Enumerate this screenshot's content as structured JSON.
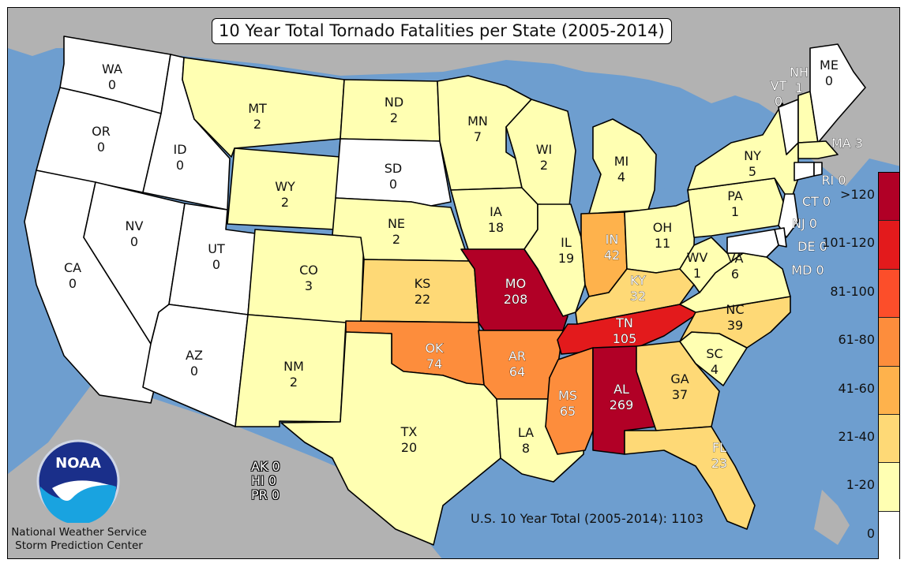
{
  "title": "10 Year Total Tornado Fatalities per State (2005-2014)",
  "us_total": "U.S. 10 Year Total (2005-2014): 1103",
  "credit": {
    "line1": "National Weather Service",
    "line2": "Storm Prediction Center"
  },
  "logo_text": "NOAA",
  "territories": {
    "ak": "AK 0",
    "hi": "HI 0",
    "pr": "PR 0"
  },
  "legend": [
    {
      "label": ">120",
      "color": "#B10026"
    },
    {
      "label": "101-120",
      "color": "#E31A1C"
    },
    {
      "label": "81-100",
      "color": "#FC4E2A"
    },
    {
      "label": "61-80",
      "color": "#FD8D3C"
    },
    {
      "label": "41-60",
      "color": "#FEB24C"
    },
    {
      "label": "21-40",
      "color": "#FED976"
    },
    {
      "label": "1-20",
      "color": "#FFFFB2"
    },
    {
      "label": "0",
      "color": "#FFFFFF"
    }
  ],
  "colors": {
    "ocean": "#6E9ECF",
    "land_outside": "#B2B2B2"
  },
  "states": {
    "WA": {
      "abbr": "WA",
      "value": "0"
    },
    "OR": {
      "abbr": "OR",
      "value": "0"
    },
    "CA": {
      "abbr": "CA",
      "value": "0"
    },
    "ID": {
      "abbr": "ID",
      "value": "0"
    },
    "NV": {
      "abbr": "NV",
      "value": "0"
    },
    "UT": {
      "abbr": "UT",
      "value": "0"
    },
    "AZ": {
      "abbr": "AZ",
      "value": "0"
    },
    "MT": {
      "abbr": "MT",
      "value": "2"
    },
    "WY": {
      "abbr": "WY",
      "value": "2"
    },
    "CO": {
      "abbr": "CO",
      "value": "3"
    },
    "NM": {
      "abbr": "NM",
      "value": "2"
    },
    "ND": {
      "abbr": "ND",
      "value": "2"
    },
    "SD": {
      "abbr": "SD",
      "value": "0"
    },
    "NE": {
      "abbr": "NE",
      "value": "2"
    },
    "KS": {
      "abbr": "KS",
      "value": "22"
    },
    "OK": {
      "abbr": "OK",
      "value": "74"
    },
    "TX": {
      "abbr": "TX",
      "value": "20"
    },
    "MN": {
      "abbr": "MN",
      "value": "7"
    },
    "IA": {
      "abbr": "IA",
      "value": "18"
    },
    "MO": {
      "abbr": "MO",
      "value": "208"
    },
    "AR": {
      "abbr": "AR",
      "value": "64"
    },
    "LA": {
      "abbr": "LA",
      "value": "8"
    },
    "WI": {
      "abbr": "WI",
      "value": "2"
    },
    "IL": {
      "abbr": "IL",
      "value": "19"
    },
    "MI": {
      "abbr": "MI",
      "value": "4"
    },
    "IN": {
      "abbr": "IN",
      "value": "42"
    },
    "OH": {
      "abbr": "OH",
      "value": "11"
    },
    "KY": {
      "abbr": "KY",
      "value": "32"
    },
    "TN": {
      "abbr": "TN",
      "value": "105"
    },
    "MS": {
      "abbr": "MS",
      "value": "65"
    },
    "AL": {
      "abbr": "AL",
      "value": "269"
    },
    "GA": {
      "abbr": "GA",
      "value": "37"
    },
    "FL": {
      "abbr": "FL",
      "value": "23"
    },
    "SC": {
      "abbr": "SC",
      "value": "4"
    },
    "NC": {
      "abbr": "NC",
      "value": "39"
    },
    "VA": {
      "abbr": "VA",
      "value": "6"
    },
    "WV": {
      "abbr": "WV",
      "value": "1"
    },
    "PA": {
      "abbr": "PA",
      "value": "1"
    },
    "NY": {
      "abbr": "NY",
      "value": "5"
    },
    "VT": {
      "abbr": "VT",
      "value": "0"
    },
    "NH": {
      "abbr": "NH",
      "value": "1"
    },
    "ME": {
      "abbr": "ME",
      "value": "0"
    },
    "MA": {
      "label": "MA 3"
    },
    "RI": {
      "label": "RI 0"
    },
    "CT": {
      "label": "CT 0"
    },
    "NJ": {
      "label": "NJ 0"
    },
    "DE": {
      "label": "DE 0"
    },
    "MD": {
      "label": "MD 0"
    }
  }
}
